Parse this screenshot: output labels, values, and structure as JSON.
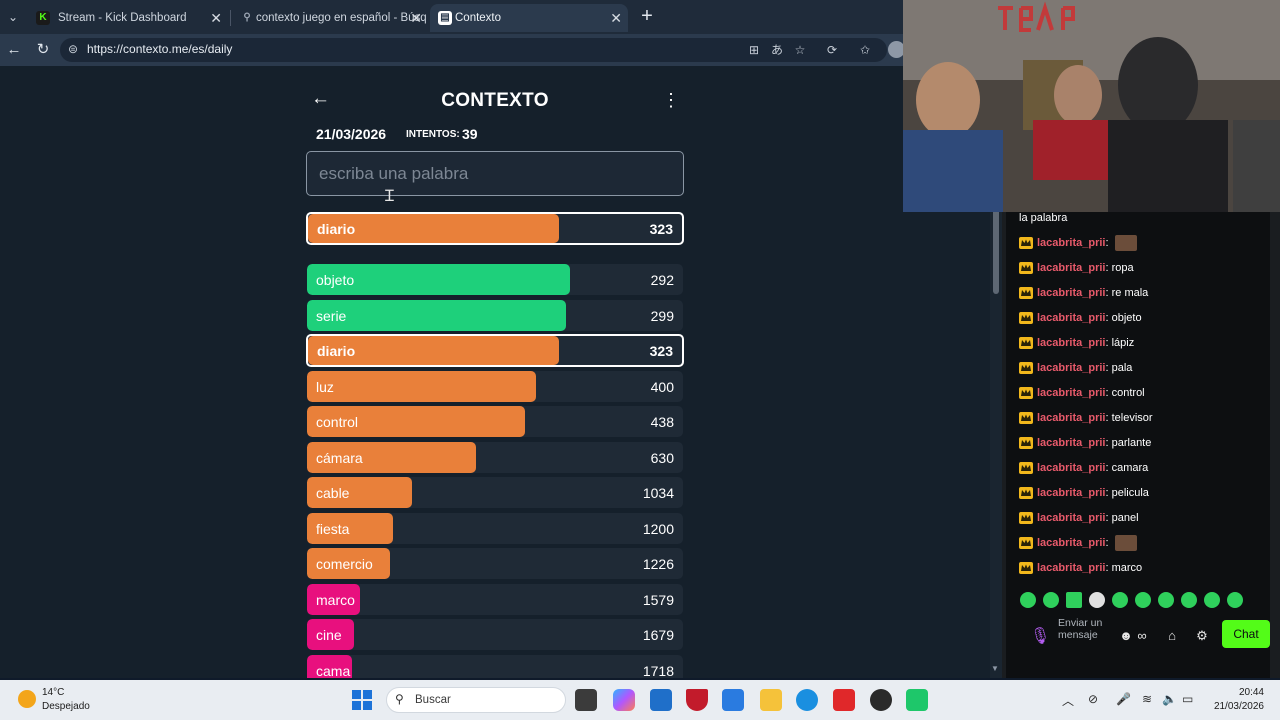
{
  "browser": {
    "tabs": [
      {
        "label": "Stream - Kick Dashboard",
        "active": false,
        "favicon": "kick-icon"
      },
      {
        "label": "contexto juego en español - Búsq",
        "active": false,
        "favicon": "search-icon"
      },
      {
        "label": "Contexto",
        "active": true,
        "favicon": "contexto-icon"
      }
    ],
    "url": "https://contexto.me/es/daily"
  },
  "game": {
    "title": "CONTEXTO",
    "date": "21/03/2026",
    "intentos_label": "INTENTOS:",
    "intentos": "39",
    "placeholder": "escriba una palabra",
    "last_guess": {
      "word": "diario",
      "rank": "323",
      "color": "#e9803a"
    },
    "guesses": [
      {
        "word": "objeto",
        "rank": "292",
        "color": "#1ed07b",
        "fill": 0.7
      },
      {
        "word": "serie",
        "rank": "299",
        "color": "#1ed07b",
        "fill": 0.69
      },
      {
        "word": "diario",
        "rank": "323",
        "color": "#e9803a",
        "fill": 0.67,
        "highlight": true
      },
      {
        "word": "luz",
        "rank": "400",
        "color": "#e9803a",
        "fill": 0.61
      },
      {
        "word": "control",
        "rank": "438",
        "color": "#e9803a",
        "fill": 0.58
      },
      {
        "word": "cámara",
        "rank": "630",
        "color": "#e9803a",
        "fill": 0.45
      },
      {
        "word": "cable",
        "rank": "1034",
        "color": "#e9803a",
        "fill": 0.28
      },
      {
        "word": "fiesta",
        "rank": "1200",
        "color": "#e9803a",
        "fill": 0.23
      },
      {
        "word": "comercio",
        "rank": "1226",
        "color": "#e9803a",
        "fill": 0.22
      },
      {
        "word": "marco",
        "rank": "1579",
        "color": "#e8107e",
        "fill": 0.14
      },
      {
        "word": "cine",
        "rank": "1679",
        "color": "#e8107e",
        "fill": 0.125
      },
      {
        "word": "cama",
        "rank": "1718",
        "color": "#e8107e",
        "fill": 0.12
      }
    ]
  },
  "chat": {
    "partial_top": "la palabra",
    "user": "lacabrita_prii",
    "messages": [
      {
        "msg": "",
        "emote": true
      },
      {
        "msg": "ropa"
      },
      {
        "msg": "re mala"
      },
      {
        "msg": "objeto"
      },
      {
        "msg": "lápiz"
      },
      {
        "msg": "pala"
      },
      {
        "msg": "control"
      },
      {
        "msg": "televisor"
      },
      {
        "msg": "parlante"
      },
      {
        "msg": "camara"
      },
      {
        "msg": "pelicula"
      },
      {
        "msg": "panel"
      },
      {
        "msg": "",
        "emote": true
      },
      {
        "msg": "marco"
      }
    ],
    "send_placeholder": "Enviar un mensaje",
    "chat_button": "Chat",
    "accent": "#53fc18",
    "user_color": "#e85a6b"
  },
  "taskbar": {
    "temp": "14°C",
    "weather": "Despejado",
    "search": "Buscar",
    "time": "20:44",
    "date": "21/03/2026"
  }
}
